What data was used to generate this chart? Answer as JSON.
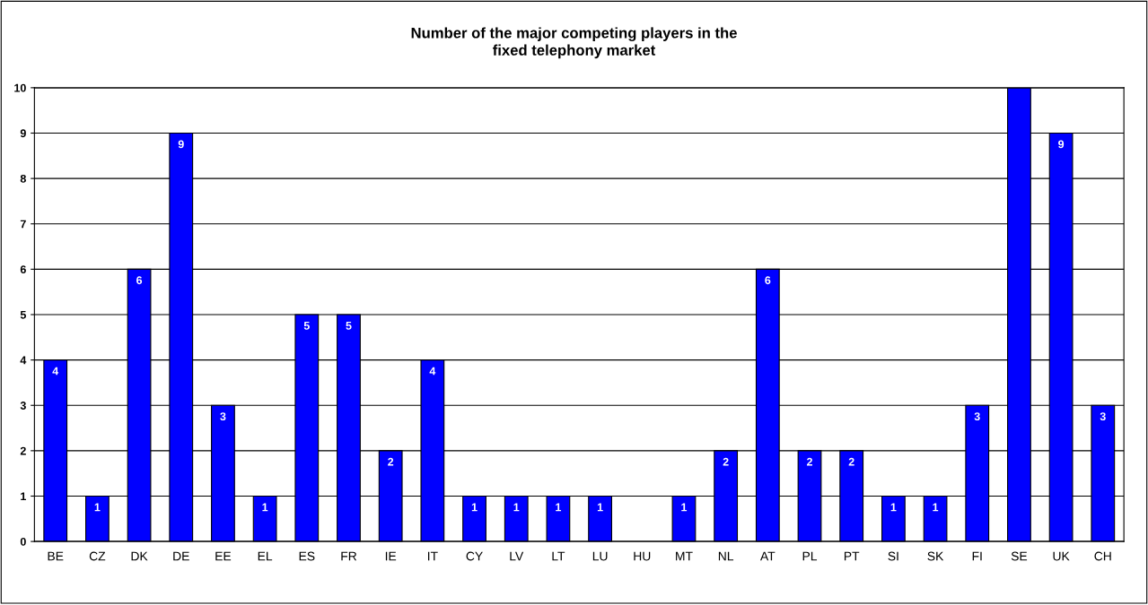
{
  "chart_data": {
    "type": "bar",
    "title": "Number of the major competing players in the\nfixed telephony market",
    "categories": [
      "BE",
      "CZ",
      "DK",
      "DE",
      "EE",
      "EL",
      "ES",
      "FR",
      "IE",
      "IT",
      "CY",
      "LV",
      "LT",
      "LU",
      "HU",
      "MT",
      "NL",
      "AT",
      "PL",
      "PT",
      "SI",
      "SK",
      "FI",
      "SE",
      "UK",
      "CH"
    ],
    "values": [
      4,
      1,
      6,
      9,
      3,
      1,
      5,
      5,
      2,
      4,
      1,
      1,
      1,
      1,
      null,
      1,
      2,
      6,
      2,
      2,
      1,
      1,
      3,
      10,
      9,
      3
    ],
    "value_labels": [
      "4",
      "1",
      "6",
      "9",
      "3",
      "1",
      "5",
      "5",
      "2",
      "4",
      "1",
      "1",
      "1",
      "1",
      null,
      "1",
      "2",
      "6",
      "2",
      "2",
      "1",
      "1",
      "3",
      null,
      "9",
      "3"
    ],
    "color": "#0000ff",
    "ylim": [
      0,
      10
    ],
    "yticks": [
      0,
      1,
      2,
      3,
      4,
      5,
      6,
      7,
      8,
      9,
      10
    ],
    "grid": "y",
    "legend": false
  }
}
